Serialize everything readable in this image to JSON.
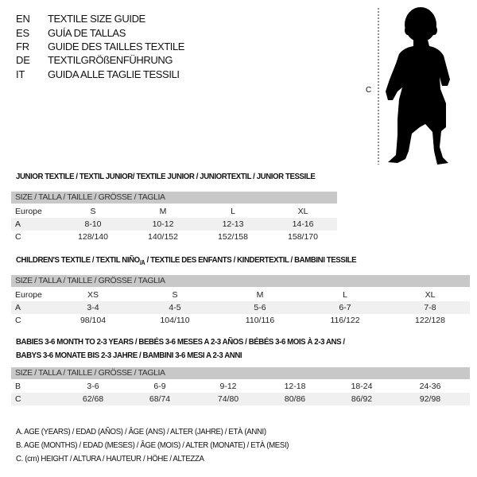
{
  "languages": [
    {
      "code": "EN",
      "text": "TEXTILE SIZE GUIDE"
    },
    {
      "code": "ES",
      "text": "GUÍA DE TALLAS"
    },
    {
      "code": "FR",
      "text": "GUIDE DES TAILLES TEXTILE"
    },
    {
      "code": "DE",
      "text": "TEXTILGRÖßENFÜHRUNG"
    },
    {
      "code": "IT",
      "text": "GUIDA ALLE TAGLIE TESSILI"
    }
  ],
  "figure": {
    "measure_label": "C"
  },
  "junior": {
    "title": "JUNIOR TEXTILE / TEXTIL JUNIOR/ TEXTILE JUNIOR / JUNIORTEXTIL / JUNIOR TESSILE",
    "header": "SIZE / TALLA / TAILLE / GRÖSSE / TAGLIA",
    "rows": [
      {
        "label": "Europe",
        "cells": [
          "S",
          "M",
          "L",
          "XL"
        ]
      },
      {
        "label": "A",
        "cells": [
          "8-10",
          "10-12",
          "12-13",
          "14-16"
        ]
      },
      {
        "label": "C",
        "cells": [
          "128/140",
          "140/152",
          "152/158",
          "158/170"
        ]
      }
    ]
  },
  "children": {
    "title_main": "CHILDREN'S TEXTILE / TEXTIL NIÑO",
    "title_sub": "/A",
    "title_rest": " / TEXTILE DES ENFANTS / KINDERTEXTIL / BAMBINI TESSILE",
    "header": "SIZE / TALLA / TAILLE / GRÖSSE / TAGLIA",
    "rows": [
      {
        "label": "Europe",
        "cells": [
          "XS",
          "S",
          "M",
          "L",
          "XL"
        ]
      },
      {
        "label": "A",
        "cells": [
          "3-4",
          "4-5",
          "5-6",
          "6-7",
          "7-8"
        ]
      },
      {
        "label": "C",
        "cells": [
          "98/104",
          "104/110",
          "110/116",
          "116/122",
          "122/128"
        ]
      }
    ]
  },
  "babies": {
    "title_line1": "BABIES 3-6 MONTH TO 2-3 YEARS / BEBÉS 3-6 MESES A 2-3 AÑOS / BÉBÉS 3-6 MOIS À 2-3 ANS /",
    "title_line2": "BABYS 3-6 MONATE BIS 2-3 JAHRE / BAMBINI 3-6 MESI A 2-3 ANNI",
    "header": "SIZE / TALLA / TAILLE / GRÖSSE / TAGLIA",
    "rows": [
      {
        "label": "B",
        "cells": [
          "3-6",
          "6-9",
          "9-12",
          "12-18",
          "18-24",
          "24-36"
        ]
      },
      {
        "label": "C",
        "cells": [
          "62/68",
          "68/74",
          "74/80",
          "80/86",
          "86/92",
          "92/98"
        ]
      }
    ]
  },
  "legend": [
    "A. AGE (YEARS) / EDAD (AÑOS) / ÂGE (ANS) / ALTER (JAHRE) / ETÀ (ANNI)",
    "B. AGE (MONTHS) / EDAD (MESES) / ÂGE (MOIS) / ALTER (MONATE) / ETÀ (MESI)",
    "C. (cm) HEIGHT / ALTURA / HAUTEUR / HÖHE / ALTEZZA"
  ]
}
